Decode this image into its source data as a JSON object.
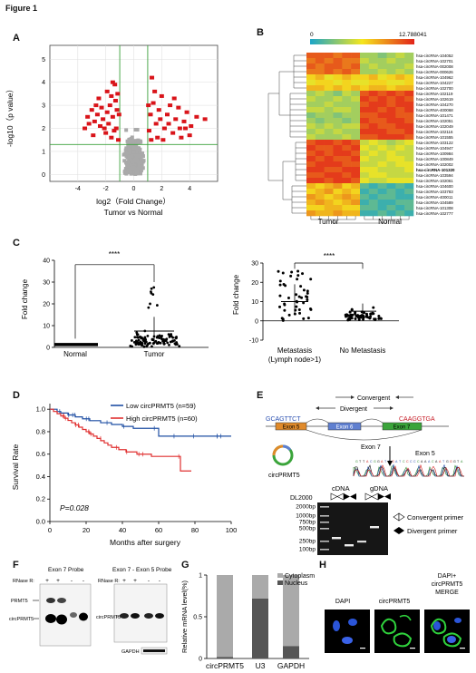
{
  "figure_title": "Figure 1",
  "panel_labels": [
    "A",
    "B",
    "C",
    "D",
    "E",
    "F",
    "G",
    "H"
  ],
  "colors": {
    "volcano_up": "#d9141a",
    "volcano_ns": "#a9a9a9",
    "volcano_guides": "#3aa13a",
    "km_low": "#1f4fa3",
    "km_high": "#e03030",
    "heat_low": "#1aa5c8",
    "heat_mid": "#f5e61e",
    "heat_high": "#e2231a"
  },
  "panelA": {
    "chart_data": {
      "type": "scatter",
      "xlabel": "log2（Fold Change）",
      "xlabel2": "Tumor vs Normal",
      "ylabel": "-log10（p value）",
      "xlim": [
        -6,
        6
      ],
      "ylim": [
        -0.3,
        5.6
      ],
      "xticks": [
        -4,
        -2,
        0,
        2,
        4
      ],
      "yticks": [
        0,
        1,
        2,
        3,
        4,
        5
      ],
      "fc_cutoff": 1,
      "p_cutoff": 1.3,
      "significant_points": [
        [
          -3.3,
          2.5
        ],
        [
          -3.0,
          2.8
        ],
        [
          -2.8,
          2.3
        ],
        [
          -2.6,
          2.6
        ],
        [
          -2.4,
          2.1
        ],
        [
          -2.3,
          2.9
        ],
        [
          -2.2,
          2.4
        ],
        [
          -2.0,
          1.8
        ],
        [
          -1.9,
          2.7
        ],
        [
          -1.8,
          2.2
        ],
        [
          -1.7,
          3.0
        ],
        [
          -1.6,
          1.6
        ],
        [
          -1.5,
          2.5
        ],
        [
          -1.4,
          1.9
        ],
        [
          -1.3,
          3.2
        ],
        [
          -1.2,
          2.8
        ],
        [
          -1.1,
          1.5
        ],
        [
          -2.5,
          3.3
        ],
        [
          -1.9,
          3.6
        ],
        [
          -1.5,
          4.0
        ],
        [
          -3.5,
          2.0
        ],
        [
          -2.9,
          1.7
        ],
        [
          -1.25,
          2.0
        ],
        [
          -1.05,
          2.6
        ],
        [
          -2.1,
          2.0
        ],
        [
          -1.6,
          3.4
        ],
        [
          -1.35,
          3.9
        ],
        [
          -2.7,
          3.0
        ],
        [
          -3.2,
          2.2
        ],
        [
          -1.15,
          3.5
        ],
        [
          1.2,
          2.6
        ],
        [
          1.4,
          3.1
        ],
        [
          1.6,
          2.2
        ],
        [
          1.8,
          2.8
        ],
        [
          2.0,
          3.4
        ],
        [
          2.2,
          2.0
        ],
        [
          2.4,
          2.6
        ],
        [
          2.6,
          3.0
        ],
        [
          2.8,
          1.8
        ],
        [
          3.0,
          2.4
        ],
        [
          3.2,
          2.9
        ],
        [
          3.4,
          1.6
        ],
        [
          3.6,
          2.3
        ],
        [
          3.8,
          2.7
        ],
        [
          4.1,
          2.1
        ],
        [
          4.5,
          2.5
        ],
        [
          5.1,
          2.4
        ],
        [
          1.3,
          4.2
        ],
        [
          1.5,
          3.6
        ],
        [
          1.7,
          1.6
        ],
        [
          1.1,
          1.9
        ],
        [
          2.1,
          1.5
        ],
        [
          2.9,
          3.3
        ],
        [
          3.3,
          2.0
        ],
        [
          4.0,
          1.7
        ],
        [
          1.9,
          2.4
        ],
        [
          1.05,
          3.0
        ],
        [
          2.5,
          2.2
        ],
        [
          3.7,
          2.0
        ],
        [
          1.25,
          1.5
        ]
      ]
    }
  },
  "panelB": {
    "chart_data": {
      "type": "heatmap",
      "colorbar_min": "0",
      "colorbar_max": "12.788041",
      "columns": [
        "Tumor",
        "Normal"
      ],
      "rows": [
        "hsa-circRNA-104052",
        "hsa-circRNA-102701",
        "hsa-circRNA-002008",
        "hsa-circRNA-000626",
        "hsa-circRNA-104962",
        "hsa-circRNA-104227",
        "hsa-circRNA-102700",
        "hsa-circRNA-102119",
        "hsa-circRNA-102619",
        "hsa-circRNA-104270",
        "hsa-circRNA-400068",
        "hsa-circRNA-101471",
        "hsa-circRNA-102051",
        "hsa-circRNA-102049",
        "hsa-circRNA-102116",
        "hsa-circRNA-101555",
        "hsa-circRNA-103122",
        "hsa-circRNA-104947",
        "hsa-circRNA-100984",
        "hsa-circRNA-100849",
        "hsa-circRNA-102002",
        "hsa-circRNA-101320",
        "hsa-circRNA-103594",
        "hsa-circRNA-102061",
        "hsa-circRNA-104600",
        "hsa-circRNA-103783",
        "hsa-circRNA-400011",
        "hsa-circRNA-104589",
        "hsa-circRNA-101308",
        "hsa-circRNA-102777"
      ],
      "bold_row": "hsa-circRNA-101320",
      "values": [
        [
          11,
          11,
          11,
          10,
          11,
          11,
          4,
          4,
          3,
          4,
          5,
          4
        ],
        [
          10,
          11,
          10,
          11,
          10,
          10,
          5,
          4,
          4,
          5,
          4,
          4
        ],
        [
          11,
          10,
          11,
          11,
          10,
          11,
          4,
          5,
          4,
          4,
          4,
          5
        ],
        [
          10,
          10,
          11,
          10,
          11,
          10,
          4,
          4,
          5,
          4,
          5,
          4
        ],
        [
          7,
          8,
          6,
          7,
          8,
          7,
          7,
          8,
          6,
          7,
          8,
          7
        ],
        [
          6,
          7,
          7,
          6,
          7,
          6,
          6,
          7,
          7,
          6,
          6,
          7
        ],
        [
          8,
          8,
          7,
          8,
          7,
          8,
          7,
          8,
          8,
          7,
          8,
          8
        ],
        [
          4,
          5,
          4,
          3,
          5,
          4,
          11,
          12,
          11,
          12,
          11,
          12
        ],
        [
          5,
          4,
          4,
          5,
          4,
          5,
          12,
          11,
          12,
          11,
          12,
          11
        ],
        [
          4,
          4,
          5,
          4,
          4,
          4,
          11,
          12,
          12,
          11,
          12,
          12
        ],
        [
          5,
          5,
          4,
          5,
          5,
          4,
          12,
          12,
          11,
          12,
          11,
          12
        ],
        [
          3,
          4,
          4,
          3,
          4,
          4,
          11,
          11,
          12,
          12,
          11,
          11
        ],
        [
          4,
          3,
          4,
          4,
          3,
          4,
          12,
          11,
          11,
          12,
          12,
          11
        ],
        [
          5,
          4,
          5,
          4,
          5,
          5,
          11,
          12,
          11,
          11,
          12,
          12
        ],
        [
          4,
          5,
          4,
          5,
          4,
          4,
          12,
          12,
          12,
          11,
          11,
          12
        ],
        [
          5,
          4,
          4,
          4,
          5,
          4,
          11,
          11,
          12,
          12,
          12,
          11
        ],
        [
          11,
          12,
          12,
          11,
          12,
          11,
          5,
          6,
          5,
          4,
          5,
          6
        ],
        [
          12,
          11,
          11,
          12,
          11,
          12,
          6,
          5,
          6,
          5,
          6,
          5
        ],
        [
          11,
          12,
          11,
          12,
          12,
          11,
          5,
          6,
          5,
          6,
          5,
          5
        ],
        [
          12,
          11,
          12,
          11,
          11,
          12,
          6,
          5,
          5,
          6,
          6,
          5
        ],
        [
          11,
          12,
          12,
          12,
          11,
          11,
          5,
          5,
          6,
          5,
          6,
          6
        ],
        [
          12,
          12,
          11,
          11,
          12,
          12,
          6,
          6,
          5,
          5,
          5,
          6
        ],
        [
          11,
          11,
          12,
          12,
          11,
          12,
          5,
          6,
          6,
          5,
          5,
          5
        ],
        [
          12,
          12,
          11,
          12,
          12,
          11,
          6,
          5,
          5,
          6,
          6,
          6
        ],
        [
          8,
          7,
          8,
          9,
          7,
          8,
          2,
          1,
          2,
          1,
          2,
          1
        ],
        [
          7,
          8,
          9,
          7,
          8,
          7,
          1,
          2,
          1,
          2,
          1,
          2
        ],
        [
          9,
          8,
          7,
          8,
          9,
          8,
          2,
          1,
          2,
          2,
          1,
          1
        ],
        [
          8,
          9,
          8,
          7,
          8,
          9,
          1,
          2,
          1,
          1,
          2,
          2
        ],
        [
          7,
          7,
          8,
          8,
          7,
          7,
          2,
          2,
          1,
          2,
          1,
          2
        ],
        [
          9,
          8,
          8,
          9,
          8,
          8,
          1,
          1,
          2,
          1,
          2,
          1
        ]
      ]
    }
  },
  "panelC1": {
    "chart_data": {
      "type": "scatter",
      "ylabel": "Fold change",
      "ylim": [
        0,
        40
      ],
      "yticks": [
        0,
        10,
        20,
        30,
        40
      ],
      "categories": [
        "Normal",
        "Tumor"
      ],
      "means": [
        1.0,
        7.5
      ],
      "significance": "****"
    }
  },
  "panelC2": {
    "chart_data": {
      "type": "scatter",
      "ylabel": "Fold change",
      "ylim": [
        -10,
        30
      ],
      "yticks": [
        -10,
        0,
        10,
        20,
        30
      ],
      "categories": [
        "Metastasis",
        "No Metastasis"
      ],
      "category_sublabel": "(Lymph node>1)",
      "medians": [
        10,
        5
      ],
      "significance": "****"
    }
  },
  "panelD": {
    "chart_data": {
      "type": "line",
      "xlabel": "Months after  surgery",
      "ylabel": "Survival Rate",
      "xlim": [
        0,
        100
      ],
      "ylim": [
        0,
        1.05
      ],
      "xticks": [
        0,
        20,
        40,
        60,
        80,
        100
      ],
      "yticks": [
        0.0,
        0.2,
        0.4,
        0.6,
        0.8,
        1.0
      ],
      "pvalue_label": "P=0.028",
      "series": [
        {
          "name": "Low circPRMT5 (n=59)",
          "x": [
            0,
            4,
            6,
            10,
            14,
            18,
            22,
            28,
            34,
            40,
            46,
            60,
            100
          ],
          "y": [
            1.0,
            0.98,
            0.966,
            0.949,
            0.932,
            0.915,
            0.898,
            0.88,
            0.864,
            0.847,
            0.83,
            0.76,
            0.76
          ]
        },
        {
          "name": "High circPRMT5 (n=60)",
          "x": [
            0,
            2,
            4,
            6,
            8,
            10,
            12,
            14,
            16,
            18,
            20,
            22,
            24,
            26,
            28,
            30,
            32,
            34,
            38,
            42,
            48,
            56,
            70,
            72,
            76,
            78
          ],
          "y": [
            1.0,
            0.98,
            0.96,
            0.94,
            0.92,
            0.9,
            0.88,
            0.86,
            0.84,
            0.82,
            0.8,
            0.78,
            0.76,
            0.74,
            0.72,
            0.7,
            0.68,
            0.66,
            0.64,
            0.62,
            0.6,
            0.58,
            0.58,
            0.45,
            0.45,
            0.45
          ]
        }
      ]
    }
  },
  "panelE": {
    "convergent": "Convergent",
    "divergent": "Divergent",
    "seq_left": "GCAGTTCT",
    "seq_right": "CAAGGTGA",
    "exon5": "Exon 5",
    "exon6": "Exon 6",
    "exon7": "Exon 7",
    "exon7_lower": "Exon 7",
    "exon5_lower": "Exon 5",
    "circ_label": "circPRMT5",
    "cdna": "cDNA",
    "gdna": "gDNA",
    "ladder_name": "DL2000",
    "ladder": [
      "2000bp",
      "1000bp",
      "750bp",
      "500bp",
      "250bp",
      "100bp"
    ],
    "legend_convergent": "Convergent primer",
    "legend_divergent": "Divergent primer"
  },
  "panelF": {
    "probe1": "Exon 7 Probe",
    "probe2": "Exon 7 - Exon 5 Probe",
    "rnase_label": "RNase R:",
    "rnase_states": [
      "+",
      "+",
      "-",
      "-"
    ],
    "band_prmt5": "PRMT5",
    "band_circ": "circPRMT5",
    "band_circ2": "circPRMT5",
    "band_gapdh": "GAPDH"
  },
  "panelG": {
    "chart_data": {
      "type": "bar",
      "categories": [
        "circPRMT5",
        "U3",
        "GAPDH"
      ],
      "ylabel": "Relative mRNA level(%)",
      "ylim": [
        0,
        1
      ],
      "yticks": [
        "0",
        "0.5",
        "1"
      ],
      "series": [
        {
          "name": "Cytoplasm",
          "values": [
            0.98,
            0.28,
            0.85
          ]
        },
        {
          "name": "Nucleus",
          "values": [
            0.02,
            0.72,
            0.15
          ]
        }
      ]
    }
  },
  "panelH": {
    "labels": [
      "DAPI",
      "circPRMT5",
      "DAPI+\ncircPRMT5\nMERGE"
    ],
    "label3_lines": [
      "DAPI+",
      "circPRMT5",
      "MERGE"
    ]
  }
}
